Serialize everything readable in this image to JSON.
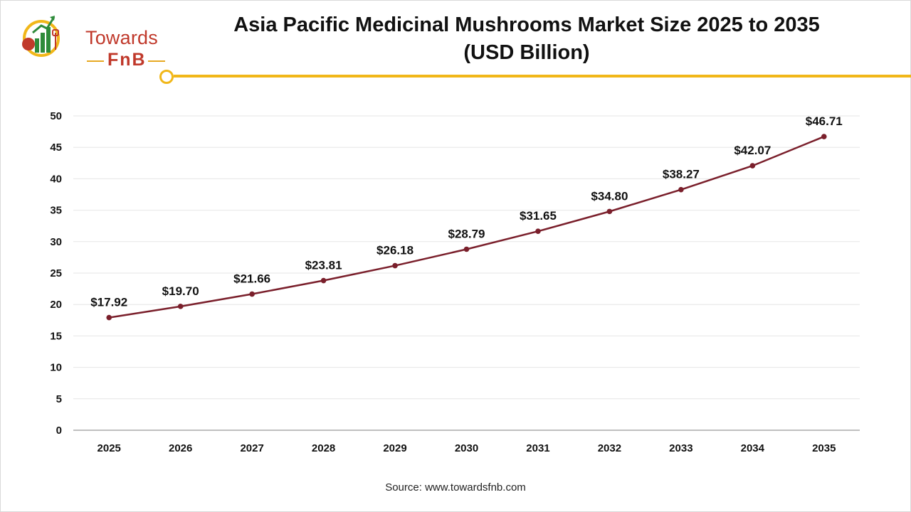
{
  "header": {
    "title": "Asia Pacific Medicinal Mushrooms Market Size 2025 to 2035",
    "subtitle": "(USD Billion)"
  },
  "logo": {
    "line1": "Towards",
    "line2": "FnB"
  },
  "footer": {
    "source": "Source: www.towardsfnb.com"
  },
  "colors": {
    "line": "#7a1f2b",
    "accent": "#f1b719",
    "brand_red": "#c0392b",
    "grid": "#e6e6e6"
  },
  "chart_data": {
    "type": "line",
    "title": "Asia Pacific Medicinal Mushrooms Market Size 2025 to 2035",
    "subtitle": "(USD Billion)",
    "xlabel": "",
    "ylabel": "",
    "ylim": [
      0,
      50
    ],
    "yticks": [
      0,
      5,
      10,
      15,
      20,
      25,
      30,
      35,
      40,
      45,
      50
    ],
    "grid": true,
    "categories": [
      "2025",
      "2026",
      "2027",
      "2028",
      "2029",
      "2030",
      "2031",
      "2032",
      "2033",
      "2034",
      "2035"
    ],
    "series": [
      {
        "values": [
          17.92,
          19.7,
          21.66,
          23.81,
          26.18,
          28.79,
          31.65,
          34.8,
          38.27,
          42.07,
          46.71
        ],
        "labels": [
          "$17.92",
          "$19.70",
          "$21.66",
          "$23.81",
          "$26.18",
          "$28.79",
          "$31.65",
          "$34.80",
          "$38.27",
          "$42.07",
          "$46.71"
        ]
      }
    ]
  }
}
